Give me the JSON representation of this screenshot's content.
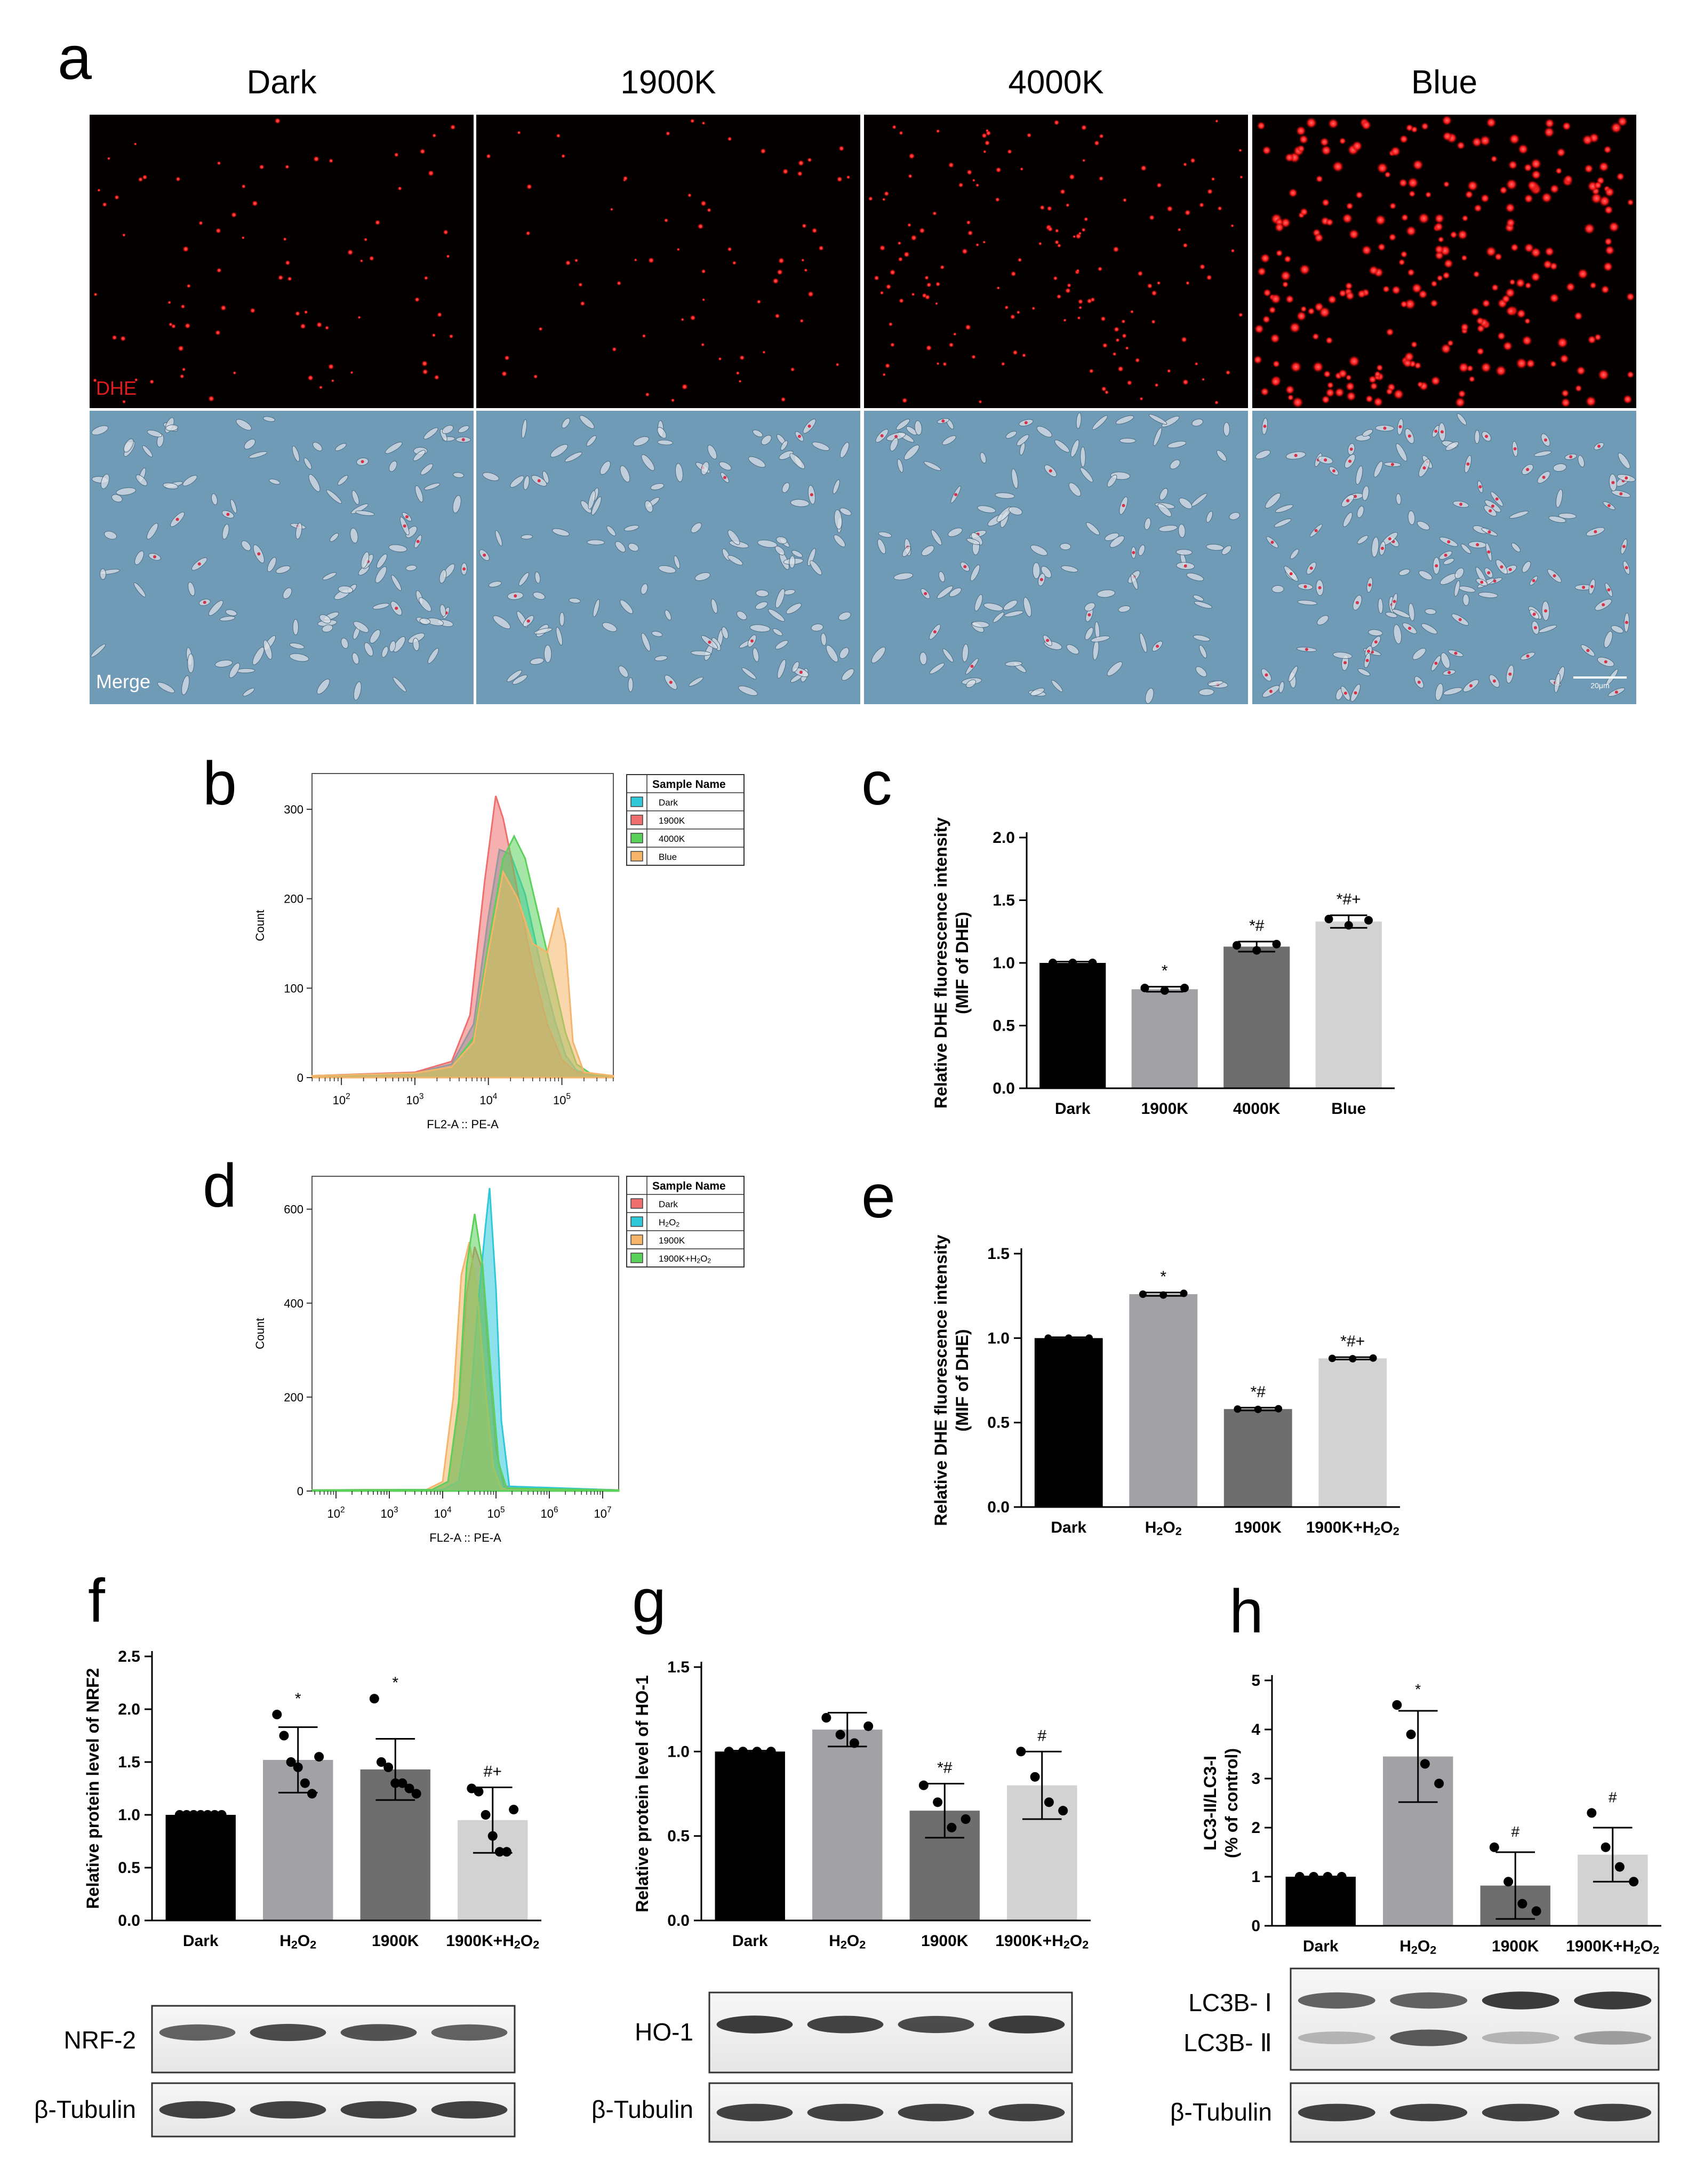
{
  "panel_letters": [
    "a",
    "b",
    "c",
    "d",
    "e",
    "f",
    "g",
    "h"
  ],
  "panel_a": {
    "columns": [
      "Dark",
      "1900K",
      "4000K",
      "Blue"
    ],
    "row_labels": [
      "DHE",
      "Merge"
    ],
    "scale_bar_label": "20μm",
    "colors": {
      "fluorescence_bg": "#050000",
      "fluorescence_dot": "#ff1a1a",
      "merge_bg": "#6f9bb7",
      "merge_cell": "#d9dfe6",
      "row_label_dhe": "#e01b1b",
      "row_label_merge": "#ffffff"
    }
  },
  "chart_data": [
    {
      "id": "b",
      "type": "area",
      "xlabel": "FL2-A :: PE-A",
      "ylabel": "Count",
      "x_ticks": [
        "10^2",
        "10^3",
        "10^4",
        "10^5"
      ],
      "y_ticks": [
        "0",
        "100",
        "200",
        "300"
      ],
      "xlim_log10": [
        1.6,
        5.7
      ],
      "ylim": [
        0,
        340
      ],
      "legend_title": "Sample Name",
      "legend_position": "top-right",
      "series": [
        {
          "name": "Dark",
          "color": "#2fc8d8",
          "log10_x": [
            1.6,
            3.0,
            3.5,
            3.8,
            4.0,
            4.15,
            4.3,
            4.5,
            4.7,
            4.9,
            5.05,
            5.2,
            5.4,
            5.7
          ],
          "count": [
            2,
            5,
            15,
            60,
            180,
            255,
            250,
            205,
            130,
            65,
            25,
            8,
            3,
            2
          ]
        },
        {
          "name": "1900K",
          "color": "#ef6f6f",
          "log10_x": [
            1.6,
            3.0,
            3.5,
            3.75,
            3.95,
            4.1,
            4.2,
            4.3,
            4.45,
            4.6,
            4.8,
            5.0,
            5.2,
            5.7
          ],
          "count": [
            2,
            6,
            18,
            70,
            220,
            315,
            290,
            250,
            185,
            125,
            60,
            20,
            6,
            2
          ]
        },
        {
          "name": "4000K",
          "color": "#5bd05b",
          "log10_x": [
            1.6,
            3.0,
            3.5,
            3.8,
            4.0,
            4.2,
            4.35,
            4.5,
            4.7,
            4.9,
            5.05,
            5.2,
            5.4,
            5.7
          ],
          "count": [
            2,
            5,
            12,
            45,
            150,
            245,
            270,
            245,
            175,
            105,
            50,
            15,
            4,
            2
          ]
        },
        {
          "name": "Blue",
          "color": "#f5b46a",
          "log10_x": [
            1.6,
            3.0,
            3.5,
            3.8,
            4.0,
            4.2,
            4.4,
            4.6,
            4.8,
            4.95,
            5.05,
            5.15,
            5.3,
            5.7
          ],
          "count": [
            2,
            5,
            12,
            40,
            140,
            230,
            200,
            150,
            140,
            190,
            150,
            40,
            6,
            2
          ]
        }
      ]
    },
    {
      "id": "c",
      "type": "bar",
      "ylabel": "Relative DHE fluorescence intensity\n(MIF of DHE)",
      "categories": [
        "Dark",
        "1900K",
        "4000K",
        "Blue"
      ],
      "values": [
        1.0,
        0.79,
        1.13,
        1.33
      ],
      "errors": [
        0.01,
        0.02,
        0.04,
        0.05
      ],
      "points": [
        [
          1.0,
          1.0,
          1.0
        ],
        [
          0.8,
          0.78,
          0.8
        ],
        [
          1.14,
          1.1,
          1.15
        ],
        [
          1.35,
          1.3,
          1.34
        ]
      ],
      "significance": [
        "",
        "*",
        "*#",
        "*#+"
      ],
      "ylim": [
        0,
        2.0
      ],
      "y_ticks": [
        "0.0",
        "0.5",
        "1.0",
        "1.5",
        "2.0"
      ],
      "colors": [
        "#000000",
        "#a2a2a6",
        "#6e6e6e",
        "#d2d2d2"
      ]
    },
    {
      "id": "d",
      "type": "area",
      "xlabel": "FL2-A :: PE-A",
      "ylabel": "Count",
      "x_ticks": [
        "10^2",
        "10^3",
        "10^4",
        "10^5",
        "10^6",
        "10^7"
      ],
      "y_ticks": [
        "0",
        "200",
        "400",
        "600"
      ],
      "xlim_log10": [
        1.55,
        7.3
      ],
      "ylim": [
        0,
        670
      ],
      "legend_title": "Sample Name",
      "legend_position": "top-right",
      "series": [
        {
          "name": "Dark",
          "color": "#ef6f6f",
          "log10_x": [
            1.55,
            3.8,
            4.1,
            4.3,
            4.45,
            4.6,
            4.75,
            4.85,
            5.0,
            5.15,
            7.3
          ],
          "count": [
            2,
            3,
            20,
            180,
            420,
            520,
            470,
            300,
            90,
            10,
            2
          ]
        },
        {
          "name": "H2O2",
          "color": "#2fc8d8",
          "log10_x": [
            1.55,
            4.0,
            4.3,
            4.5,
            4.65,
            4.8,
            4.88,
            5.0,
            5.1,
            5.25,
            7.3
          ],
          "count": [
            2,
            3,
            20,
            160,
            380,
            560,
            645,
            430,
            150,
            10,
            2
          ]
        },
        {
          "name": "1900K",
          "color": "#f5b46a",
          "log10_x": [
            1.55,
            3.7,
            4.0,
            4.2,
            4.35,
            4.5,
            4.65,
            4.8,
            4.95,
            5.1,
            7.3
          ],
          "count": [
            2,
            3,
            20,
            200,
            460,
            530,
            420,
            220,
            50,
            5,
            2
          ]
        },
        {
          "name": "1900K+H2O2",
          "color": "#5bd05b",
          "log10_x": [
            1.55,
            3.8,
            4.1,
            4.3,
            4.45,
            4.6,
            4.75,
            4.9,
            5.05,
            5.2,
            7.3
          ],
          "count": [
            2,
            3,
            20,
            190,
            480,
            590,
            480,
            260,
            60,
            6,
            2
          ]
        }
      ]
    },
    {
      "id": "e",
      "type": "bar",
      "ylabel": "Relative DHE fluorescence intensity\n(MIF of DHE)",
      "categories": [
        "Dark",
        "H2O2",
        "1900K",
        "1900K+H2O2"
      ],
      "values": [
        1.0,
        1.26,
        0.58,
        0.88
      ],
      "errors": [
        0.005,
        0.01,
        0.008,
        0.007
      ],
      "points": [
        [
          1.0,
          1.0,
          1.0
        ],
        [
          1.26,
          1.255,
          1.265
        ],
        [
          0.58,
          0.578,
          0.582
        ],
        [
          0.88,
          0.878,
          0.882
        ]
      ],
      "significance": [
        "",
        "*",
        "*#",
        "*#+"
      ],
      "ylim": [
        0,
        1.5
      ],
      "y_ticks": [
        "0.0",
        "0.5",
        "1.0",
        "1.5"
      ],
      "colors": [
        "#000000",
        "#a2a2a6",
        "#6e6e6e",
        "#d2d2d2"
      ]
    },
    {
      "id": "f",
      "type": "bar",
      "ylabel": "Relative protein level of NRF2",
      "categories": [
        "Dark",
        "H2O2",
        "1900K",
        "1900K+H2O2"
      ],
      "values": [
        1.0,
        1.52,
        1.43,
        0.95
      ],
      "errors": [
        0.005,
        0.31,
        0.29,
        0.31
      ],
      "points": [
        [
          1,
          1,
          1,
          1,
          1,
          1,
          1
        ],
        [
          1.95,
          1.75,
          1.5,
          1.45,
          1.3,
          1.2,
          1.55
        ],
        [
          2.1,
          1.5,
          1.45,
          1.3,
          1.3,
          1.25,
          1.2
        ],
        [
          1.25,
          1.22,
          1.0,
          0.8,
          0.65,
          0.65,
          1.05
        ]
      ],
      "significance": [
        "",
        "*",
        "*",
        "#+"
      ],
      "ylim": [
        0,
        2.5
      ],
      "y_ticks": [
        "0.0",
        "0.5",
        "1.0",
        "1.5",
        "2.0",
        "2.5"
      ],
      "colors": [
        "#000000",
        "#a2a2a6",
        "#6e6e6e",
        "#d2d2d2"
      ],
      "blot_labels": [
        "NRF-2",
        "β-Tubulin"
      ]
    },
    {
      "id": "g",
      "type": "bar",
      "ylabel": "Relative protein level of HO-1",
      "categories": [
        "Dark",
        "H2O2",
        "1900K",
        "1900K+H2O2"
      ],
      "values": [
        1.0,
        1.13,
        0.65,
        0.8
      ],
      "errors": [
        0.005,
        0.1,
        0.16,
        0.2
      ],
      "points": [
        [
          1,
          1,
          1,
          1
        ],
        [
          1.2,
          1.1,
          1.05,
          1.15
        ],
        [
          0.8,
          0.7,
          0.55,
          0.6
        ],
        [
          1.0,
          0.85,
          0.7,
          0.65
        ]
      ],
      "significance": [
        "",
        "",
        "*#",
        "#"
      ],
      "ylim": [
        0,
        1.5
      ],
      "y_ticks": [
        "0.0",
        "0.5",
        "1.0",
        "1.5"
      ],
      "colors": [
        "#000000",
        "#a2a2a6",
        "#6e6e6e",
        "#d2d2d2"
      ],
      "blot_labels": [
        "HO-1",
        "β-Tubulin"
      ]
    },
    {
      "id": "h",
      "type": "bar",
      "ylabel": "LC3-II/LC3-I\n(% of control)",
      "categories": [
        "Dark",
        "H2O2",
        "1900K",
        "1900K+H2O2"
      ],
      "values": [
        1.0,
        3.45,
        0.82,
        1.45
      ],
      "errors": [
        0.005,
        0.93,
        0.68,
        0.55
      ],
      "points": [
        [
          1,
          1,
          1,
          1
        ],
        [
          4.5,
          3.9,
          3.3,
          2.9
        ],
        [
          1.6,
          0.9,
          0.45,
          0.3
        ],
        [
          2.3,
          1.6,
          1.2,
          0.9
        ]
      ],
      "significance": [
        "",
        "*",
        "#",
        "#"
      ],
      "ylim": [
        0,
        5
      ],
      "y_ticks": [
        "0",
        "1",
        "2",
        "3",
        "4",
        "5"
      ],
      "colors": [
        "#000000",
        "#a2a2a6",
        "#6e6e6e",
        "#d2d2d2"
      ],
      "blot_labels": [
        "LC3B- Ⅰ",
        "LC3B- Ⅱ",
        "β-Tubulin"
      ]
    }
  ]
}
